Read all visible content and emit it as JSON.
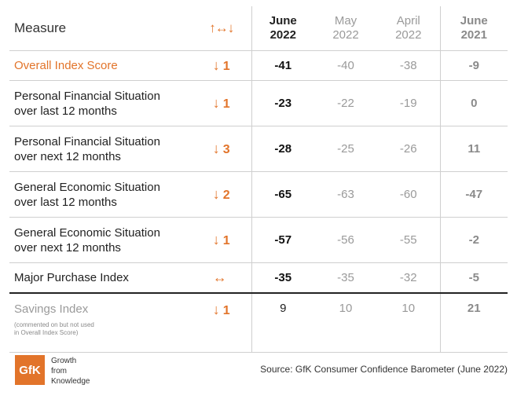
{
  "header": {
    "measure": "Measure",
    "change_symbol": "↑↔↓",
    "columns": [
      {
        "month": "June",
        "year": "2022"
      },
      {
        "month": "May",
        "year": "2022"
      },
      {
        "month": "April",
        "year": "2022"
      },
      {
        "month": "June",
        "year": "2021"
      }
    ]
  },
  "rows": [
    {
      "label1": "Overall Index Score",
      "label2": "",
      "arrow": "↓",
      "change": "1",
      "values": [
        "-41",
        "-40",
        "-38",
        "-9"
      ]
    },
    {
      "label1": "Personal Financial Situation",
      "label2": "over last 12 months",
      "arrow": "↓",
      "change": "1",
      "values": [
        "-23",
        "-22",
        "-19",
        "0"
      ]
    },
    {
      "label1": "Personal Financial Situation",
      "label2": "over next 12 months",
      "arrow": "↓",
      "change": "3",
      "values": [
        "-28",
        "-25",
        "-26",
        "11"
      ]
    },
    {
      "label1": "General Economic Situation",
      "label2": "over last 12 months",
      "arrow": "↓",
      "change": "2",
      "values": [
        "-65",
        "-63",
        "-60",
        "-47"
      ]
    },
    {
      "label1": "General Economic Situation",
      "label2": "over next 12 months",
      "arrow": "↓",
      "change": "1",
      "values": [
        "-57",
        "-56",
        "-55",
        "-2"
      ]
    },
    {
      "label1": "Major Purchase Index",
      "label2": "",
      "arrow": "↔",
      "change": "",
      "values": [
        "-35",
        "-35",
        "-32",
        "-5"
      ]
    }
  ],
  "savings": {
    "label": "Savings Index",
    "note1": "(commented on but not used",
    "note2": "in Overall Index Score)",
    "arrow": "↓",
    "change": "1",
    "values": [
      "9",
      "10",
      "10",
      "21"
    ]
  },
  "footer": {
    "logo": "GfK",
    "tagline": [
      "Growth",
      "from",
      "Knowledge"
    ],
    "source": "Source: GfK Consumer Confidence Barometer (June 2022)"
  },
  "colors": {
    "accent": "#e2742a",
    "muted": "#9a9a9a",
    "rule": "#cfcfcf"
  }
}
